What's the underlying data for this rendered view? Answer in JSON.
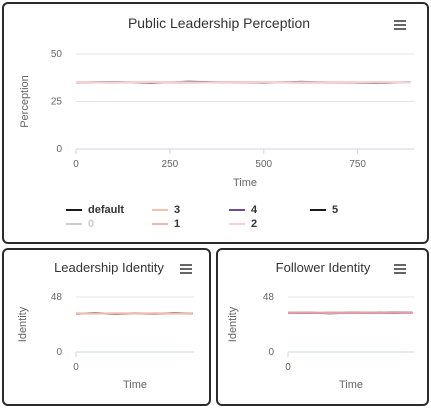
{
  "charts": {
    "main": {
      "menu_icon": "hamburger-menu-icon",
      "legend": [
        {
          "name": "default",
          "color": "#1a1a1a",
          "visible": true
        },
        {
          "name": "3",
          "color": "#f4c4ae",
          "visible": true
        },
        {
          "name": "4",
          "color": "#6b4c9a",
          "visible": true
        },
        {
          "name": "5",
          "color": "#1a1a1a",
          "visible": true
        },
        {
          "name": "0",
          "color": "#cccccc",
          "visible": false
        },
        {
          "name": "1",
          "color": "#f2b9b0",
          "visible": true
        },
        {
          "name": "2",
          "color": "#f6d0d6",
          "visible": true
        }
      ]
    },
    "leader": {
      "menu_icon": "hamburger-menu-icon"
    },
    "follower": {
      "menu_icon": "hamburger-menu-icon"
    }
  },
  "chart_data": [
    {
      "type": "line",
      "title": "Public Leadership Perception",
      "xlabel": "Time",
      "ylabel": "Perception",
      "xlim": [
        0,
        900
      ],
      "ylim": [
        0,
        50
      ],
      "x_ticks": [
        "0",
        "250",
        "500",
        "750"
      ],
      "y_ticks": [
        "0",
        "25",
        "50"
      ],
      "grid": true,
      "legend_position": "bottom",
      "series": [
        {
          "name": "default",
          "color": "#1a1a1a",
          "x": [
            0,
            100,
            200,
            300,
            400,
            500,
            600,
            700,
            800,
            890
          ],
          "values": [
            35,
            35.2,
            34.8,
            35.4,
            35,
            34.9,
            35.3,
            35,
            34.8,
            35.1
          ]
        },
        {
          "name": "3",
          "color": "#f4c4ae",
          "x": [
            0,
            100,
            200,
            300,
            400,
            500,
            600,
            700,
            800,
            890
          ],
          "values": [
            35.2,
            34.9,
            35.3,
            35,
            35.2,
            35.1,
            34.9,
            35.2,
            35,
            35
          ]
        },
        {
          "name": "1",
          "color": "#f2b9b0",
          "x": [
            0,
            100,
            200,
            300,
            400,
            500,
            600,
            700,
            800,
            890
          ],
          "values": [
            34.8,
            35.1,
            35,
            34.9,
            35.1,
            35.2,
            35,
            34.9,
            35.2,
            35
          ]
        },
        {
          "name": "2",
          "color": "#f6d0d6",
          "x": [
            0,
            100,
            200,
            300,
            400,
            500,
            600,
            700,
            800,
            890
          ],
          "values": [
            35.1,
            35,
            35.2,
            35.1,
            34.9,
            35,
            35.1,
            35.2,
            35,
            35.1
          ]
        }
      ]
    },
    {
      "type": "line",
      "title": "Leadership Identity",
      "xlabel": "Time",
      "ylabel": "Identity",
      "xlim": [
        0,
        900
      ],
      "ylim": [
        0,
        48
      ],
      "x_ticks": [
        "0"
      ],
      "y_ticks": [
        "0",
        "48"
      ],
      "grid": true,
      "series": [
        {
          "name": "default",
          "color": "#1a1a1a",
          "x": [
            0,
            150,
            300,
            450,
            600,
            750,
            890
          ],
          "values": [
            33.5,
            33.8,
            33.4,
            33.7,
            33.5,
            33.9,
            33.6
          ]
        },
        {
          "name": "1",
          "color": "#f2b9b0",
          "x": [
            0,
            150,
            300,
            450,
            600,
            750,
            890
          ],
          "values": [
            33.7,
            33.5,
            33.8,
            33.6,
            33.8,
            33.5,
            33.7
          ]
        }
      ]
    },
    {
      "type": "line",
      "title": "Follower Identity",
      "xlabel": "Time",
      "ylabel": "Identity",
      "xlim": [
        0,
        900
      ],
      "ylim": [
        0,
        48
      ],
      "x_ticks": [
        "0"
      ],
      "y_ticks": [
        "0",
        "48"
      ],
      "grid": true,
      "series": [
        {
          "name": "default",
          "color": "#1a1a1a",
          "x": [
            0,
            150,
            300,
            450,
            600,
            750,
            890
          ],
          "values": [
            34,
            34.3,
            33.9,
            34.2,
            34,
            34.4,
            34.1
          ]
        },
        {
          "name": "4",
          "color": "#6b4c9a",
          "x": [
            0,
            150,
            300,
            450,
            600,
            750,
            890
          ],
          "values": [
            34.2,
            34,
            34.3,
            34.1,
            34.3,
            34,
            34.2
          ]
        },
        {
          "name": "1",
          "color": "#e8a0a8",
          "x": [
            0,
            150,
            300,
            450,
            600,
            750,
            890
          ],
          "values": [
            34.1,
            34.2,
            34,
            34.3,
            34.1,
            34.2,
            34
          ]
        }
      ]
    }
  ]
}
